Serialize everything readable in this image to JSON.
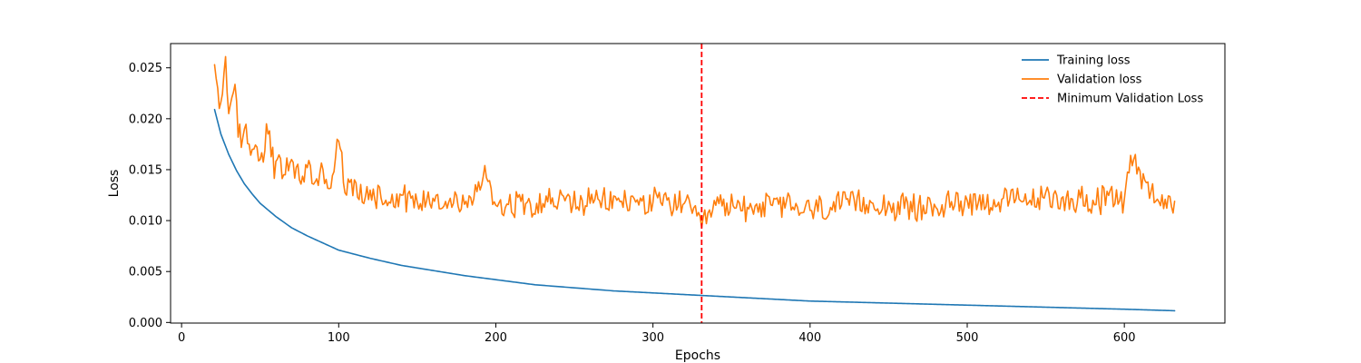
{
  "chart_data": {
    "type": "line",
    "title": "",
    "xlabel": "Epochs",
    "ylabel": "Loss",
    "xlim": [
      -7,
      664
    ],
    "ylim": [
      -6e-05,
      0.02738
    ],
    "xticks": [
      0,
      100,
      200,
      300,
      400,
      500,
      600
    ],
    "xtick_labels": [
      "0",
      "100",
      "200",
      "300",
      "400",
      "500",
      "600"
    ],
    "yticks": [
      0.0,
      0.005,
      0.01,
      0.015,
      0.02,
      0.025
    ],
    "ytick_labels": [
      "0.000",
      "0.005",
      "0.010",
      "0.015",
      "0.020",
      "0.025"
    ],
    "grid": false,
    "legend_position": "top-right",
    "series": [
      {
        "name": "Training loss",
        "color": "#1f77b4",
        "style": "solid",
        "x_start": 21,
        "x_end": 632,
        "y_start": 0.0209,
        "y_end": 0.00115,
        "points": [
          [
            21,
            0.0209
          ],
          [
            25,
            0.0185
          ],
          [
            30,
            0.0165
          ],
          [
            35,
            0.0149
          ],
          [
            40,
            0.0136
          ],
          [
            45,
            0.0126
          ],
          [
            50,
            0.0117
          ],
          [
            60,
            0.0104
          ],
          [
            70,
            0.0093
          ],
          [
            80,
            0.0085
          ],
          [
            90,
            0.0078
          ],
          [
            100,
            0.0071
          ],
          [
            120,
            0.0063
          ],
          [
            140,
            0.0056
          ],
          [
            160,
            0.0051
          ],
          [
            180,
            0.0046
          ],
          [
            200,
            0.0042
          ],
          [
            225,
            0.0037
          ],
          [
            250,
            0.0034
          ],
          [
            275,
            0.0031
          ],
          [
            300,
            0.0029
          ],
          [
            325,
            0.0027
          ],
          [
            350,
            0.0025
          ],
          [
            375,
            0.0023
          ],
          [
            400,
            0.0021
          ],
          [
            425,
            0.002
          ],
          [
            450,
            0.0019
          ],
          [
            475,
            0.0018
          ],
          [
            500,
            0.0017
          ],
          [
            525,
            0.0016
          ],
          [
            550,
            0.0015
          ],
          [
            575,
            0.0014
          ],
          [
            600,
            0.0013
          ],
          [
            632,
            0.00115
          ]
        ]
      },
      {
        "name": "Validation loss",
        "color": "#ff7f0e",
        "style": "solid",
        "x_start": 21,
        "x_end": 632,
        "envelope": [
          [
            21,
            0.0253
          ],
          [
            24,
            0.021
          ],
          [
            27,
            0.0245
          ],
          [
            28,
            0.0261
          ],
          [
            30,
            0.0205
          ],
          [
            33,
            0.0226
          ],
          [
            36,
            0.0182
          ],
          [
            40,
            0.019
          ],
          [
            45,
            0.017
          ],
          [
            50,
            0.016
          ],
          [
            55,
            0.0185
          ],
          [
            60,
            0.0158
          ],
          [
            65,
            0.0145
          ],
          [
            70,
            0.016
          ],
          [
            75,
            0.014
          ],
          [
            80,
            0.0152
          ],
          [
            85,
            0.0138
          ],
          [
            90,
            0.015
          ],
          [
            95,
            0.0132
          ],
          [
            100,
            0.0178
          ],
          [
            105,
            0.0125
          ],
          [
            110,
            0.014
          ],
          [
            115,
            0.0118
          ],
          [
            120,
            0.013
          ],
          [
            130,
            0.012
          ],
          [
            140,
            0.0125
          ],
          [
            150,
            0.0118
          ],
          [
            160,
            0.0122
          ],
          [
            170,
            0.0118
          ],
          [
            180,
            0.0116
          ],
          [
            190,
            0.013
          ],
          [
            193,
            0.0154
          ],
          [
            200,
            0.0115
          ],
          [
            220,
            0.0118
          ],
          [
            240,
            0.012
          ],
          [
            260,
            0.0117
          ],
          [
            280,
            0.0119
          ],
          [
            300,
            0.0118
          ],
          [
            320,
            0.0117
          ],
          [
            331,
            0.0093
          ],
          [
            340,
            0.0115
          ],
          [
            360,
            0.0113
          ],
          [
            380,
            0.0116
          ],
          [
            400,
            0.011
          ],
          [
            420,
            0.0115
          ],
          [
            440,
            0.0117
          ],
          [
            460,
            0.0112
          ],
          [
            480,
            0.0113
          ],
          [
            500,
            0.012
          ],
          [
            520,
            0.0118
          ],
          [
            540,
            0.012
          ],
          [
            560,
            0.0122
          ],
          [
            580,
            0.012
          ],
          [
            600,
            0.0121
          ],
          [
            604,
            0.0164
          ],
          [
            620,
            0.0119
          ],
          [
            632,
            0.0119
          ]
        ],
        "noise_amplitude": 0.0012
      }
    ],
    "reference_lines": [
      {
        "name": "Minimum Validation Loss",
        "color": "#ff0000",
        "style": "dashed",
        "orientation": "vertical",
        "x": 331
      }
    ]
  }
}
